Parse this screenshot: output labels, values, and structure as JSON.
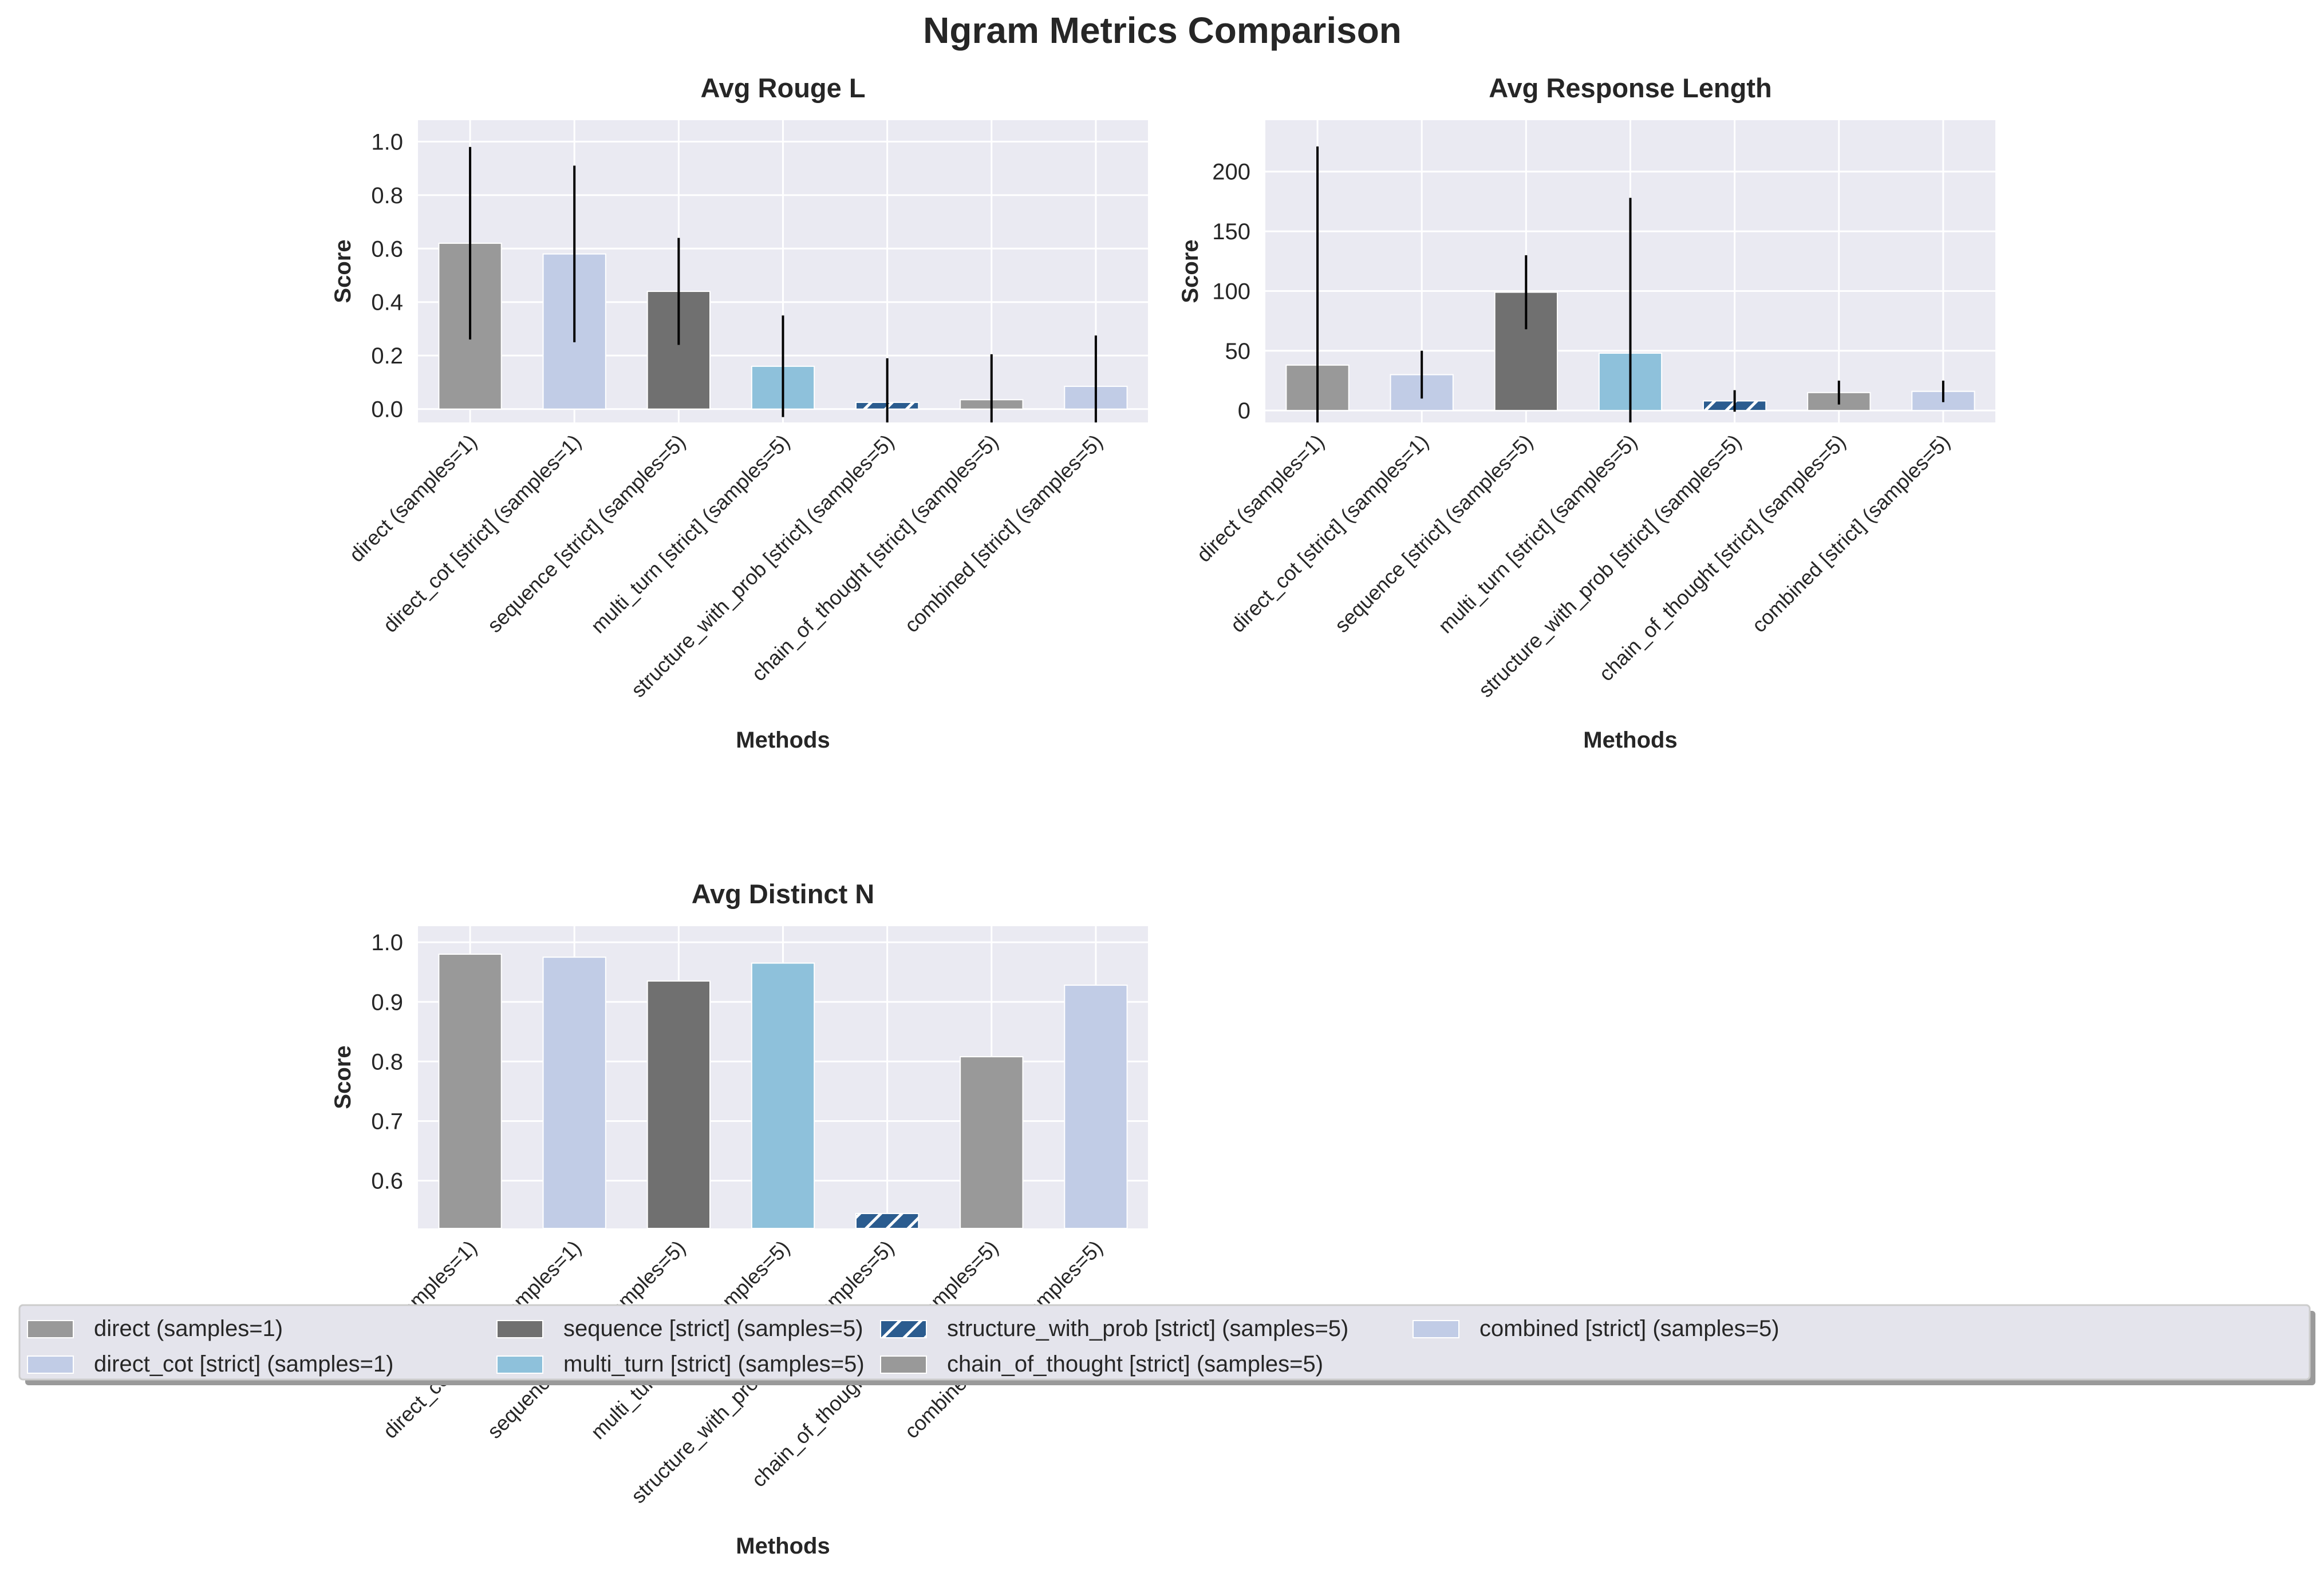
{
  "figure": {
    "title": "Ngram Metrics Comparison"
  },
  "colors": {
    "axes_background": "#EAEAF2",
    "grid": "#FFFFFF",
    "series": [
      "#999999",
      "#C1CCE6",
      "#707070",
      "#8EC1DB",
      "#2B5C8F",
      "#999999",
      "#C1CCE6"
    ],
    "hatch_series_index": 4,
    "error_bar": "#000000"
  },
  "legend": {
    "placement": "bottom-center",
    "columns": 5,
    "entries": [
      "direct (samples=1)",
      "direct_cot [strict] (samples=1)",
      "sequence [strict] (samples=5)",
      "multi_turn [strict] (samples=5)",
      "structure_with_prob [strict] (samples=5)",
      "chain_of_thought [strict] (samples=5)",
      "combined [strict] (samples=5)"
    ]
  },
  "chart_data": [
    {
      "type": "bar",
      "title": "Avg Rouge L",
      "xlabel": "Methods",
      "ylabel": "Score",
      "categories": [
        "direct (samples=1)",
        "direct_cot [strict] (samples=1)",
        "sequence [strict] (samples=5)",
        "multi_turn [strict] (samples=5)",
        "structure_with_prob [strict] (samples=5)",
        "chain_of_thought [strict] (samples=5)",
        "combined [strict] (samples=5)"
      ],
      "values": [
        0.62,
        0.58,
        0.44,
        0.16,
        0.025,
        0.035,
        0.085
      ],
      "error": [
        0.36,
        0.33,
        0.2,
        0.19,
        0.165,
        0.17,
        0.19
      ],
      "ylim": [
        -0.05,
        1.08
      ],
      "yticks": [
        0.0,
        0.2,
        0.4,
        0.6,
        0.8,
        1.0
      ],
      "ytick_labels": [
        "0.0",
        "0.2",
        "0.4",
        "0.6",
        "0.8",
        "1.0"
      ],
      "grid": true
    },
    {
      "type": "bar",
      "title": "Avg Response Length",
      "xlabel": "Methods",
      "ylabel": "Score",
      "categories": [
        "direct (samples=1)",
        "direct_cot [strict] (samples=1)",
        "sequence [strict] (samples=5)",
        "multi_turn [strict] (samples=5)",
        "structure_with_prob [strict] (samples=5)",
        "chain_of_thought [strict] (samples=5)",
        "combined [strict] (samples=5)"
      ],
      "values": [
        38,
        30,
        99,
        48,
        8,
        15,
        16
      ],
      "error": [
        183,
        20,
        31,
        130,
        9,
        10,
        9
      ],
      "ylim": [
        -10,
        243
      ],
      "yticks": [
        0,
        50,
        100,
        150,
        200
      ],
      "ytick_labels": [
        "0",
        "50",
        "100",
        "150",
        "200"
      ],
      "grid": true
    },
    {
      "type": "bar",
      "title": "Avg Distinct N",
      "xlabel": "Methods",
      "ylabel": "Score",
      "categories": [
        "direct (samples=1)",
        "direct_cot [strict] (samples=1)",
        "sequence [strict] (samples=5)",
        "multi_turn [strict] (samples=5)",
        "structure_with_prob [strict] (samples=5)",
        "chain_of_thought [strict] (samples=5)",
        "combined [strict] (samples=5)"
      ],
      "values": [
        0.98,
        0.975,
        0.935,
        0.965,
        0.545,
        0.808,
        0.928
      ],
      "error": [
        0,
        0,
        0,
        0,
        0,
        0,
        0
      ],
      "ylim": [
        0.52,
        1.027
      ],
      "yticks": [
        0.6,
        0.7,
        0.8,
        0.9,
        1.0
      ],
      "ytick_labels": [
        "0.6",
        "0.7",
        "0.8",
        "0.9",
        "1.0"
      ],
      "grid": true
    }
  ]
}
